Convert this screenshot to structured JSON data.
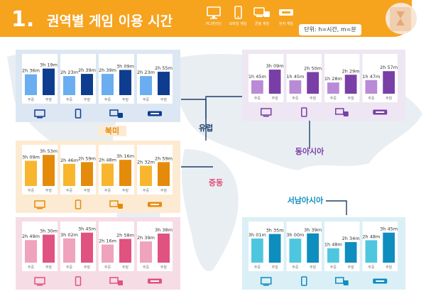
{
  "header": {
    "number": "1.",
    "title": "권역별 게임 이용 시간",
    "unit": "단위: h=시간, m=분",
    "legend": [
      {
        "icon": "monitor-icon",
        "label": "PC/온라인"
      },
      {
        "icon": "phone-icon",
        "label": "모바일 게임"
      },
      {
        "icon": "console-icon",
        "label": "콘솔 게임"
      },
      {
        "icon": "arcade-icon",
        "label": "전자 게임"
      }
    ]
  },
  "bar_labels": {
    "weekday": "주중",
    "weekend": "주말"
  },
  "colors": {
    "header": "#F6A31E",
    "northamerica_light": "#6AAEF0",
    "northamerica_dark": "#0E3D8F",
    "europe_light": "#B98AD6",
    "europe_dark": "#7A3EA7",
    "northamerica2_light": "#F8B62F",
    "northamerica2_dark": "#E58B0C",
    "asia_light": "#4FC6E0",
    "asia_dark": "#0E8DBF",
    "middleeast_light": "#EFA3BD",
    "middleeast_dark": "#E0527F",
    "line": "#1E3F6B"
  },
  "chart_data": [
    {
      "type": "bar",
      "region_key": "na_blue",
      "region": "",
      "categories": [
        "PC/온라인",
        "모바일 게임",
        "콘솔 게임",
        "전자 게임"
      ],
      "series": [
        {
          "name": "주중",
          "values": [
            2.6,
            2.383,
            2.65,
            2.383
          ],
          "labels": [
            "2h 36m",
            "2h 23m",
            "2h 39m",
            "2h 23m"
          ]
        },
        {
          "name": "주말",
          "values": [
            3.317,
            2.65,
            3.15,
            2.917
          ],
          "labels": [
            "3h 19m",
            "2h 39m",
            "3h 09m",
            "2h 55m"
          ]
        }
      ]
    },
    {
      "type": "bar",
      "region_key": "europe",
      "region": "유럽",
      "categories": [
        "PC/온라인",
        "모바일 게임",
        "콘솔 게임",
        "전자 게임"
      ],
      "series": [
        {
          "name": "주중",
          "values": [
            1.75,
            1.75,
            1.467,
            1.783
          ],
          "labels": [
            "1h 45m",
            "1h 45m",
            "1h 28m",
            "1h 47m"
          ]
        },
        {
          "name": "주말",
          "values": [
            3.15,
            2.833,
            2.483,
            2.95
          ],
          "labels": [
            "3h 09m",
            "2h 50m",
            "2h 29m",
            "2h 57m"
          ]
        }
      ]
    },
    {
      "type": "bar",
      "region_key": "northamerica",
      "region": "북미",
      "categories": [
        "PC/온라인",
        "모바일 게임",
        "콘솔 게임",
        "전자 게임"
      ],
      "series": [
        {
          "name": "주중",
          "values": [
            3.15,
            2.767,
            2.8,
            2.533
          ],
          "labels": [
            "3h 09m",
            "2h 46m",
            "2h 48m",
            "2h 32m"
          ]
        },
        {
          "name": "주말",
          "values": [
            3.883,
            2.983,
            3.267,
            2.983
          ],
          "labels": [
            "3h 53m",
            "2h 59m",
            "3h 16m",
            "2h 59m"
          ]
        }
      ]
    },
    {
      "type": "bar",
      "region_key": "eastasia",
      "region": "동아시아",
      "categories": [],
      "series": []
    },
    {
      "type": "bar",
      "region_key": "middleeast",
      "region": "중동",
      "categories": [
        "PC/온라인",
        "모바일 게임",
        "콘솔 게임",
        "전자 게임"
      ],
      "series": [
        {
          "name": "주중",
          "values": [
            2.817,
            3.033,
            2.267,
            2.65
          ],
          "labels": [
            "2h 49m",
            "3h 02m",
            "2h 16m",
            "2h 39m"
          ]
        },
        {
          "name": "주말",
          "values": [
            3.5,
            3.75,
            2.967,
            3.633
          ],
          "labels": [
            "3h 30m",
            "3h 45m",
            "2h 58m",
            "3h 38m"
          ]
        }
      ]
    },
    {
      "type": "bar",
      "region_key": "southeastasia",
      "region": "서남아시아",
      "categories": [
        "PC/온라인",
        "모바일 게임",
        "콘솔 게임",
        "전자 게임"
      ],
      "series": [
        {
          "name": "주중",
          "values": [
            3.017,
            3.0,
            1.8,
            2.8
          ],
          "labels": [
            "3h 01m",
            "3h 00m",
            "1h 48m",
            "2h 48m"
          ]
        },
        {
          "name": "주말",
          "values": [
            3.583,
            3.65,
            2.567,
            3.75
          ],
          "labels": [
            "3h 35m",
            "3h 39m",
            "2h 34m",
            "3h 45m"
          ]
        }
      ]
    }
  ]
}
